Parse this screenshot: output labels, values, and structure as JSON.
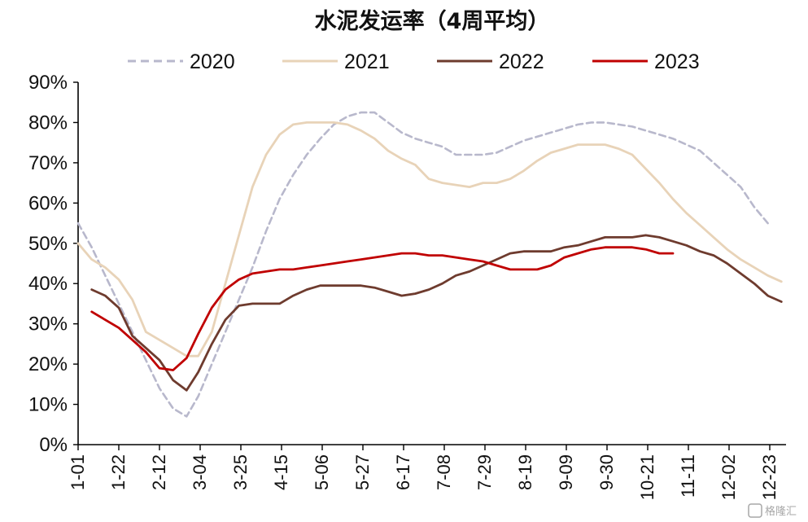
{
  "chart_data": {
    "type": "line",
    "title": "水泥发运率（4周平均）",
    "xlabel": "",
    "ylabel": "",
    "ylim": [
      0,
      90
    ],
    "y_ticks": [
      "0%",
      "10%",
      "20%",
      "30%",
      "40%",
      "50%",
      "60%",
      "70%",
      "80%",
      "90%"
    ],
    "x_ticks": [
      "1-01",
      "1-22",
      "2-12",
      "3-04",
      "3-25",
      "4-15",
      "5-06",
      "5-27",
      "6-17",
      "7-08",
      "7-29",
      "8-19",
      "9-09",
      "9-30",
      "10-21",
      "11-11",
      "12-02",
      "12-23"
    ],
    "grid": false,
    "legend_position": "top",
    "series": [
      {
        "name": "2020",
        "color": "#b8b8cc",
        "style": "dashed",
        "x": [
          "1-01",
          "1-08",
          "1-15",
          "1-22",
          "1-29",
          "2-05",
          "2-12",
          "2-19",
          "2-26",
          "3-04",
          "3-11",
          "3-18",
          "3-25",
          "4-01",
          "4-08",
          "4-15",
          "4-22",
          "4-29",
          "5-06",
          "5-13",
          "5-20",
          "5-27",
          "6-03",
          "6-10",
          "6-17",
          "6-24",
          "7-01",
          "7-08",
          "7-15",
          "7-22",
          "7-29",
          "8-05",
          "8-12",
          "8-19",
          "8-26",
          "9-02",
          "9-09",
          "9-16",
          "9-23",
          "9-30",
          "10-07",
          "10-14",
          "10-21",
          "10-28",
          "11-04",
          "11-11",
          "11-18",
          "11-25",
          "12-02",
          "12-09",
          "12-16",
          "12-23"
        ],
        "values": [
          55,
          49,
          42,
          35,
          28,
          21,
          14,
          9,
          7,
          12,
          20,
          28,
          36,
          44,
          53,
          61,
          67,
          72,
          76,
          79.5,
          81.5,
          82.5,
          82.5,
          80,
          77.5,
          76,
          75,
          74,
          72,
          72,
          72,
          72.5,
          74,
          75.5,
          76.5,
          77.5,
          78.5,
          79.5,
          80,
          80,
          79.5,
          79,
          78,
          77,
          76,
          74.5,
          73,
          70,
          67,
          64,
          59,
          55
        ]
      },
      {
        "name": "2021",
        "color": "#e8d3b8",
        "style": "solid",
        "x": [
          "1-01",
          "1-08",
          "1-15",
          "1-22",
          "1-29",
          "2-05",
          "2-12",
          "2-19",
          "2-26",
          "3-04",
          "3-11",
          "3-18",
          "3-25",
          "4-01",
          "4-08",
          "4-15",
          "4-22",
          "4-29",
          "5-06",
          "5-13",
          "5-20",
          "5-27",
          "6-03",
          "6-10",
          "6-17",
          "6-24",
          "7-01",
          "7-08",
          "7-15",
          "7-22",
          "7-29",
          "8-05",
          "8-12",
          "8-19",
          "8-26",
          "9-02",
          "9-09",
          "9-16",
          "9-23",
          "9-30",
          "10-07",
          "10-14",
          "10-21",
          "10-28",
          "11-04",
          "11-11",
          "11-18",
          "11-25",
          "12-02",
          "12-09",
          "12-16",
          "12-23",
          "12-30"
        ],
        "values": [
          50,
          46,
          44,
          41,
          36,
          28,
          26,
          24,
          22,
          22,
          28,
          40,
          52,
          64,
          72,
          77,
          79.5,
          80,
          80,
          80,
          79.5,
          78,
          76,
          73,
          71,
          69.5,
          66,
          65,
          64.5,
          64,
          65,
          65,
          66,
          68,
          70.5,
          72.5,
          73.5,
          74.5,
          74.5,
          74.5,
          73.5,
          72,
          68.5,
          65,
          61,
          57.5,
          54.5,
          51.5,
          48.5,
          46,
          44,
          42,
          40.5
        ]
      },
      {
        "name": "2022",
        "color": "#6e3b2e",
        "style": "solid",
        "x": [
          "1-08",
          "1-15",
          "1-22",
          "1-29",
          "2-05",
          "2-12",
          "2-19",
          "2-26",
          "3-04",
          "3-11",
          "3-18",
          "3-25",
          "4-01",
          "4-08",
          "4-15",
          "4-22",
          "4-29",
          "5-06",
          "5-13",
          "5-20",
          "5-27",
          "6-03",
          "6-10",
          "6-17",
          "6-24",
          "7-01",
          "7-08",
          "7-15",
          "7-22",
          "7-29",
          "8-05",
          "8-12",
          "8-19",
          "8-26",
          "9-02",
          "9-09",
          "9-16",
          "9-23",
          "9-30",
          "10-07",
          "10-14",
          "10-21",
          "10-28",
          "11-04",
          "11-11",
          "11-18",
          "11-25",
          "12-02",
          "12-09",
          "12-16",
          "12-23",
          "12-30"
        ],
        "values": [
          38.5,
          37,
          34,
          27,
          24,
          21,
          16,
          13.5,
          18,
          25,
          31,
          34.5,
          35,
          35,
          35,
          37,
          38.5,
          39.5,
          39.5,
          39.5,
          39.5,
          39,
          38,
          37,
          37.5,
          38.5,
          40,
          42,
          43,
          44.5,
          46,
          47.5,
          48,
          48,
          48,
          49,
          49.5,
          50.5,
          51.5,
          51.5,
          51.5,
          52,
          51.5,
          50.5,
          49.5,
          48,
          47,
          45,
          42.5,
          40,
          37,
          35.5
        ]
      },
      {
        "name": "2023",
        "color": "#c00000",
        "style": "solid",
        "x": [
          "1-08",
          "1-15",
          "1-22",
          "1-29",
          "2-05",
          "2-12",
          "2-19",
          "2-26",
          "3-04",
          "3-11",
          "3-18",
          "3-25",
          "4-01",
          "4-08",
          "4-15",
          "4-22",
          "4-29",
          "5-06",
          "5-13",
          "5-20",
          "5-27",
          "6-03",
          "6-10",
          "6-17",
          "6-24",
          "7-01",
          "7-08",
          "7-15",
          "7-22",
          "7-29",
          "8-05",
          "8-12",
          "8-19",
          "8-26",
          "9-02",
          "9-09",
          "9-16",
          "9-23",
          "9-30",
          "10-07",
          "10-14",
          "10-21",
          "10-28",
          "11-04"
        ],
        "values": [
          33,
          31,
          29,
          26,
          23,
          19,
          18.5,
          21.5,
          27.5,
          34,
          38.5,
          41,
          42.5,
          43,
          43.5,
          43.5,
          44,
          44.5,
          45,
          45.5,
          46,
          46.5,
          47,
          47.5,
          47.5,
          47,
          47,
          46.5,
          46,
          45.5,
          44.5,
          43.5,
          43.5,
          43.5,
          44.5,
          46.5,
          47.5,
          48.5,
          49,
          49,
          49,
          48.5,
          47.5,
          47.5
        ]
      }
    ]
  },
  "watermark": "格隆汇"
}
